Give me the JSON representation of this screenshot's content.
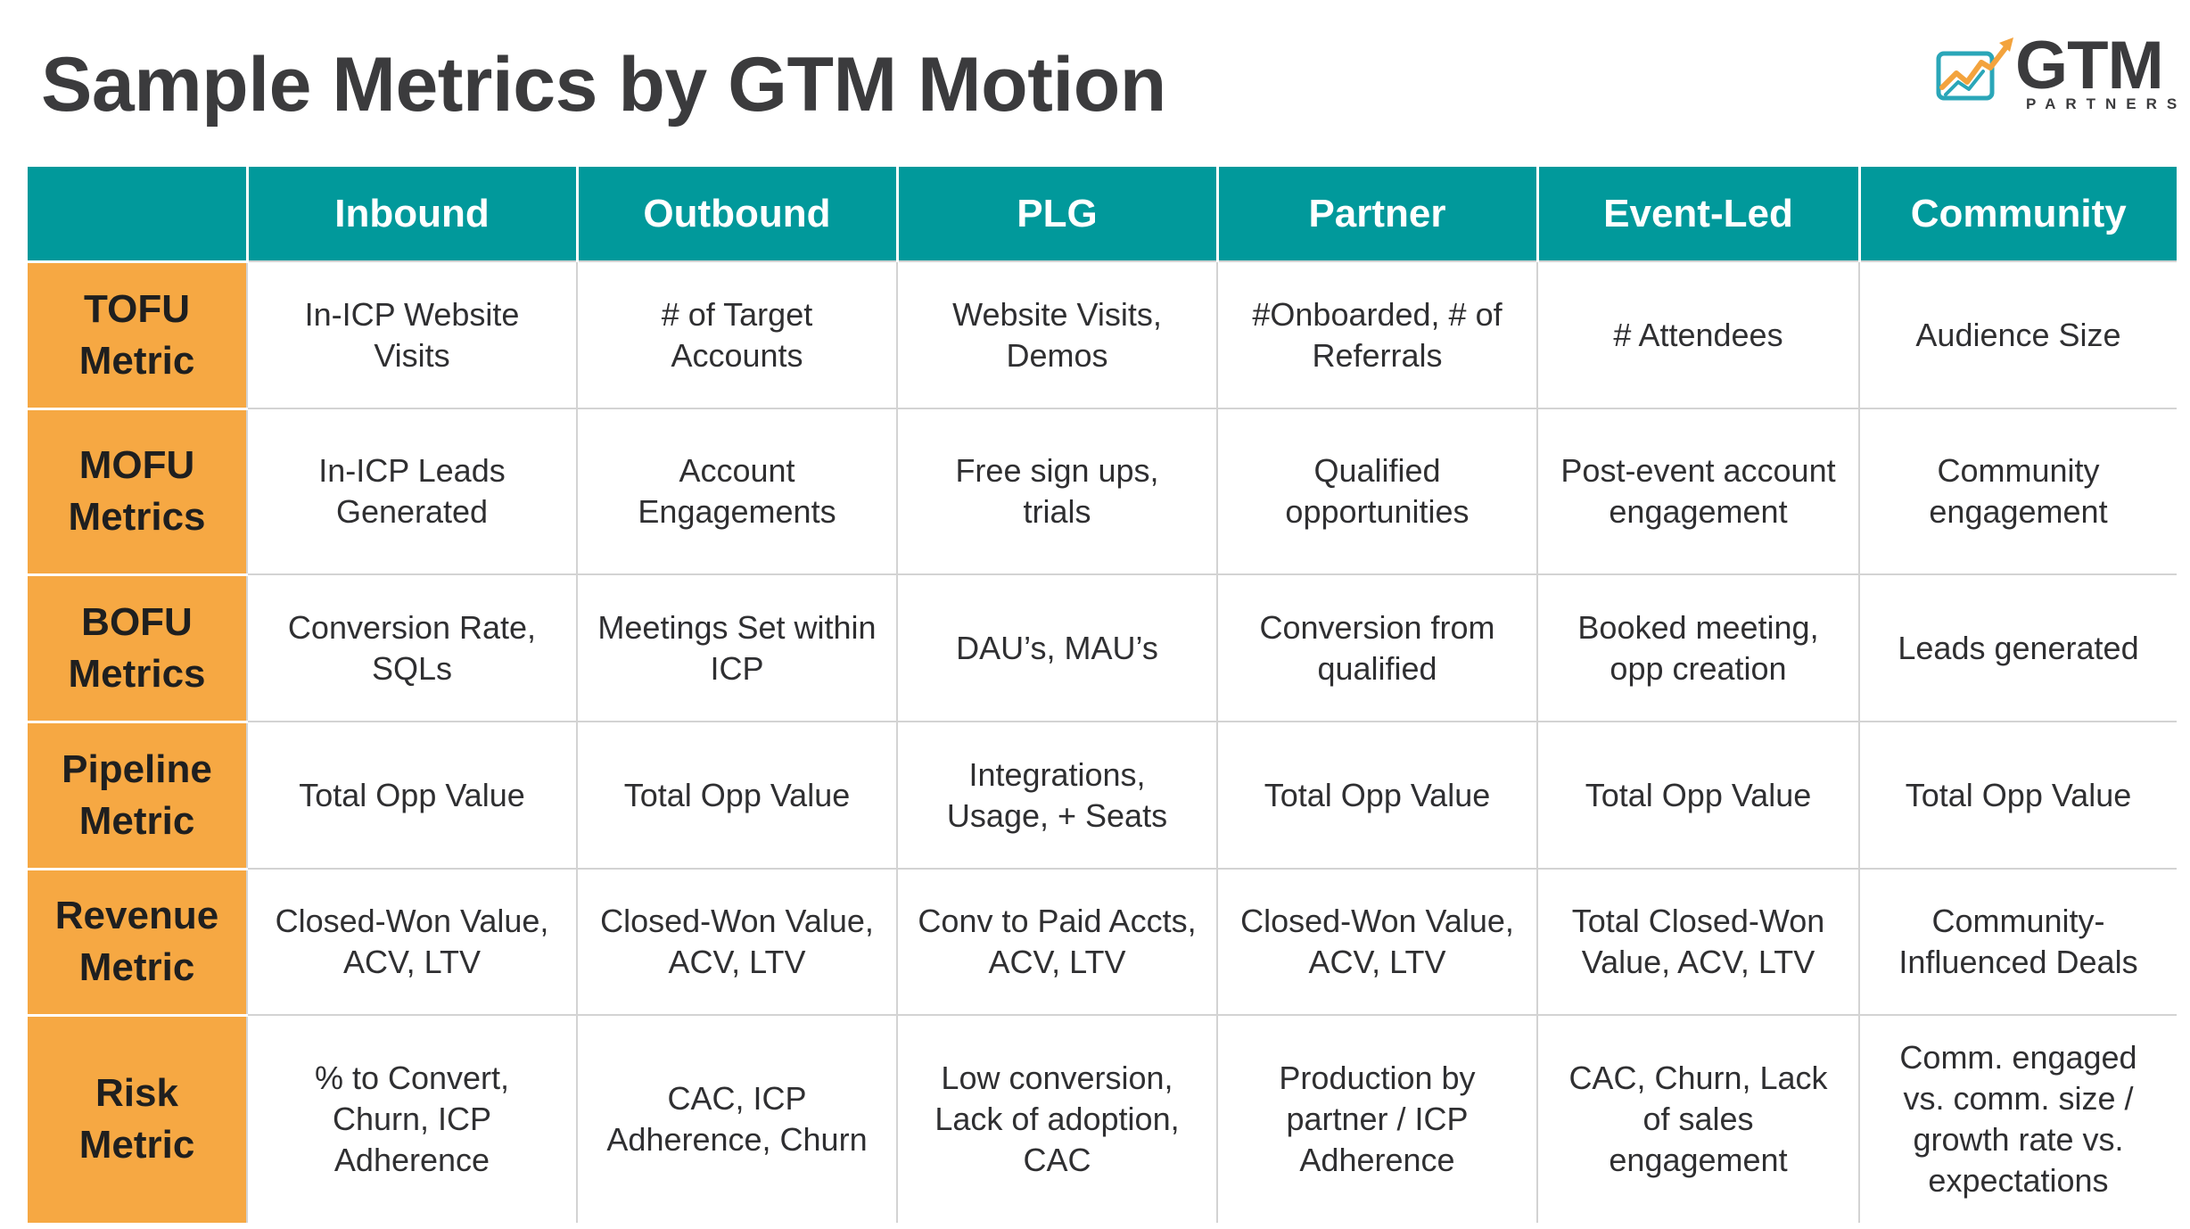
{
  "page": {
    "title": "Sample Metrics by GTM Motion"
  },
  "logo": {
    "word": "GTM",
    "sub": "PARTNERS",
    "colors": {
      "teal": "#2aa6b8",
      "orange": "#f3a33d",
      "text": "#3b3b3d"
    },
    "icon": "chart-trend-arrow-icon"
  },
  "colors": {
    "header_bg": "#01999b",
    "row_header_bg": "#f6a843",
    "grid_line": "#d3d3d3"
  },
  "table": {
    "columns": [
      "Inbound",
      "Outbound",
      "PLG",
      "Partner",
      "Event-Led",
      "Community"
    ],
    "rows": [
      {
        "label_1": "TOFU",
        "label_2": "Metric",
        "cells": [
          "In-ICP Website Visits",
          "# of Target Accounts",
          "Website Visits, Demos",
          "#Onboarded, # of Referrals",
          "# Attendees",
          "Audience Size"
        ]
      },
      {
        "label_1": "MOFU",
        "label_2": "Metrics",
        "cells": [
          "In-ICP Leads Generated",
          "Account Engagements",
          "Free sign ups, trials",
          "Qualified opportunities",
          "Post-event account engagement",
          "Community engagement"
        ]
      },
      {
        "label_1": "BOFU",
        "label_2": "Metrics",
        "cells": [
          "Conversion Rate, SQLs",
          "Meetings Set within ICP",
          "DAU’s, MAU’s",
          "Conversion from qualified",
          "Booked meeting, opp creation",
          "Leads generated"
        ]
      },
      {
        "label_1": "Pipeline",
        "label_2": "Metric",
        "cells": [
          "Total Opp Value",
          "Total Opp Value",
          "Integrations, Usage, + Seats",
          "Total Opp Value",
          "Total Opp Value",
          "Total Opp Value"
        ]
      },
      {
        "label_1": "Revenue",
        "label_2": "Metric",
        "cells": [
          "Closed-Won Value, ACV, LTV",
          "Closed-Won Value, ACV, LTV",
          "Conv to Paid Accts, ACV, LTV",
          "Closed-Won Value, ACV, LTV",
          "Total Closed-Won Value, ACV, LTV",
          "Community-Influenced Deals"
        ]
      },
      {
        "label_1": "Risk",
        "label_2": "Metric",
        "cells": [
          "% to Convert, Churn, ICP Adherence",
          "CAC, ICP Adherence, Churn",
          "Low conversion, Lack of adoption, CAC",
          "Production by partner / ICP Adherence",
          "CAC, Churn, Lack of sales engagement",
          "Comm. engaged vs. comm. size / growth rate vs. expectations"
        ]
      }
    ]
  }
}
